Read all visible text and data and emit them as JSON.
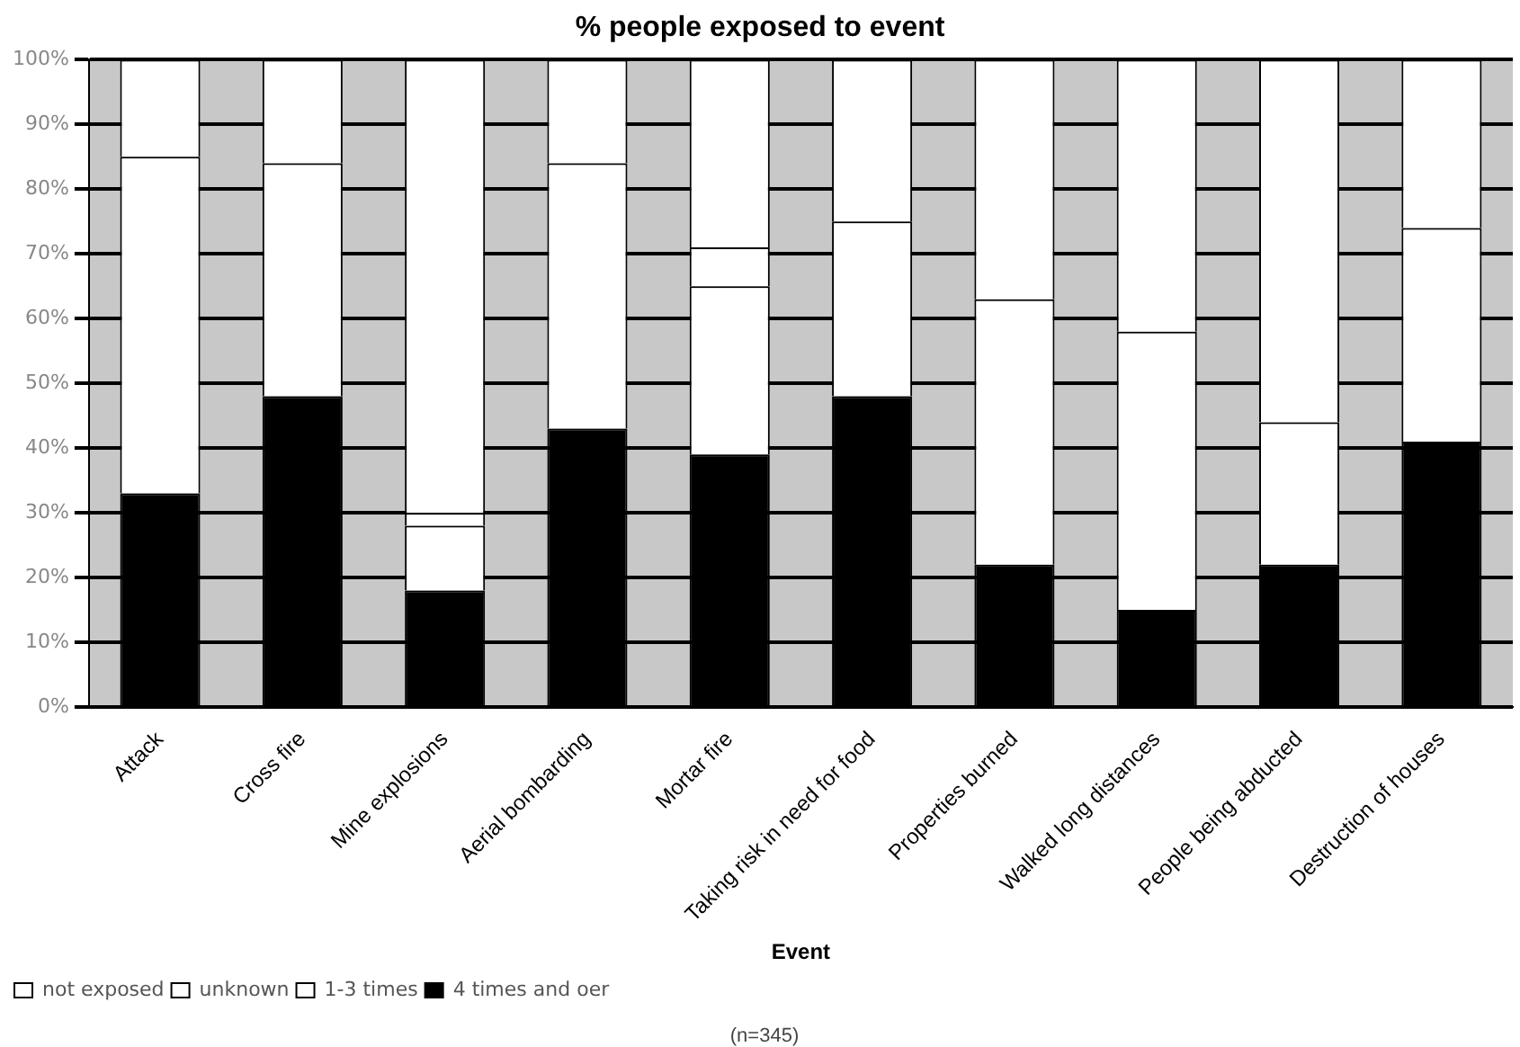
{
  "chart_data": {
    "type": "bar",
    "title": "% people exposed to event",
    "xlabel": "Event",
    "annotations": [
      "(n=345)"
    ],
    "categories": [
      "Attack",
      "Cross fire",
      "Mine explosions",
      "Aerial bombarding",
      "Mortar fire",
      "Taking risk in need for food",
      "Properties burned",
      "Walked long distances",
      "People being abducted",
      "Destruction of houses"
    ],
    "stacked": true,
    "ylim": [
      0,
      100
    ],
    "yticks": [
      {
        "value": 0,
        "label": "0%"
      },
      {
        "value": 10,
        "label": "10%"
      },
      {
        "value": 20,
        "label": "20%"
      },
      {
        "value": 30,
        "label": "30%"
      },
      {
        "value": 40,
        "label": "40%"
      },
      {
        "value": 50,
        "label": "50%"
      },
      {
        "value": 60,
        "label": "60%"
      },
      {
        "value": 70,
        "label": "70%"
      },
      {
        "value": 80,
        "label": "80%"
      },
      {
        "value": 90,
        "label": "90%"
      },
      {
        "value": 100,
        "label": "100%"
      }
    ],
    "grid": "y",
    "legend": "bottom left",
    "series": [
      {
        "name": "4 times and oer",
        "color": "#000000",
        "values": [
          33,
          48,
          18,
          43,
          39,
          48,
          22,
          15,
          22,
          41
        ]
      },
      {
        "name": "1-3 times",
        "color": "#ffffff",
        "values": [
          52,
          36,
          10,
          41,
          26,
          27,
          41,
          43,
          22,
          33
        ]
      },
      {
        "name": "unknown",
        "color": "#ffffff",
        "values": [
          0,
          0,
          2,
          0,
          6,
          0,
          0,
          0,
          0,
          0
        ]
      },
      {
        "name": "not exposed",
        "color": "#ffffff",
        "values": [
          15,
          16,
          70,
          16,
          29,
          25,
          37,
          42,
          56,
          26
        ]
      }
    ]
  }
}
